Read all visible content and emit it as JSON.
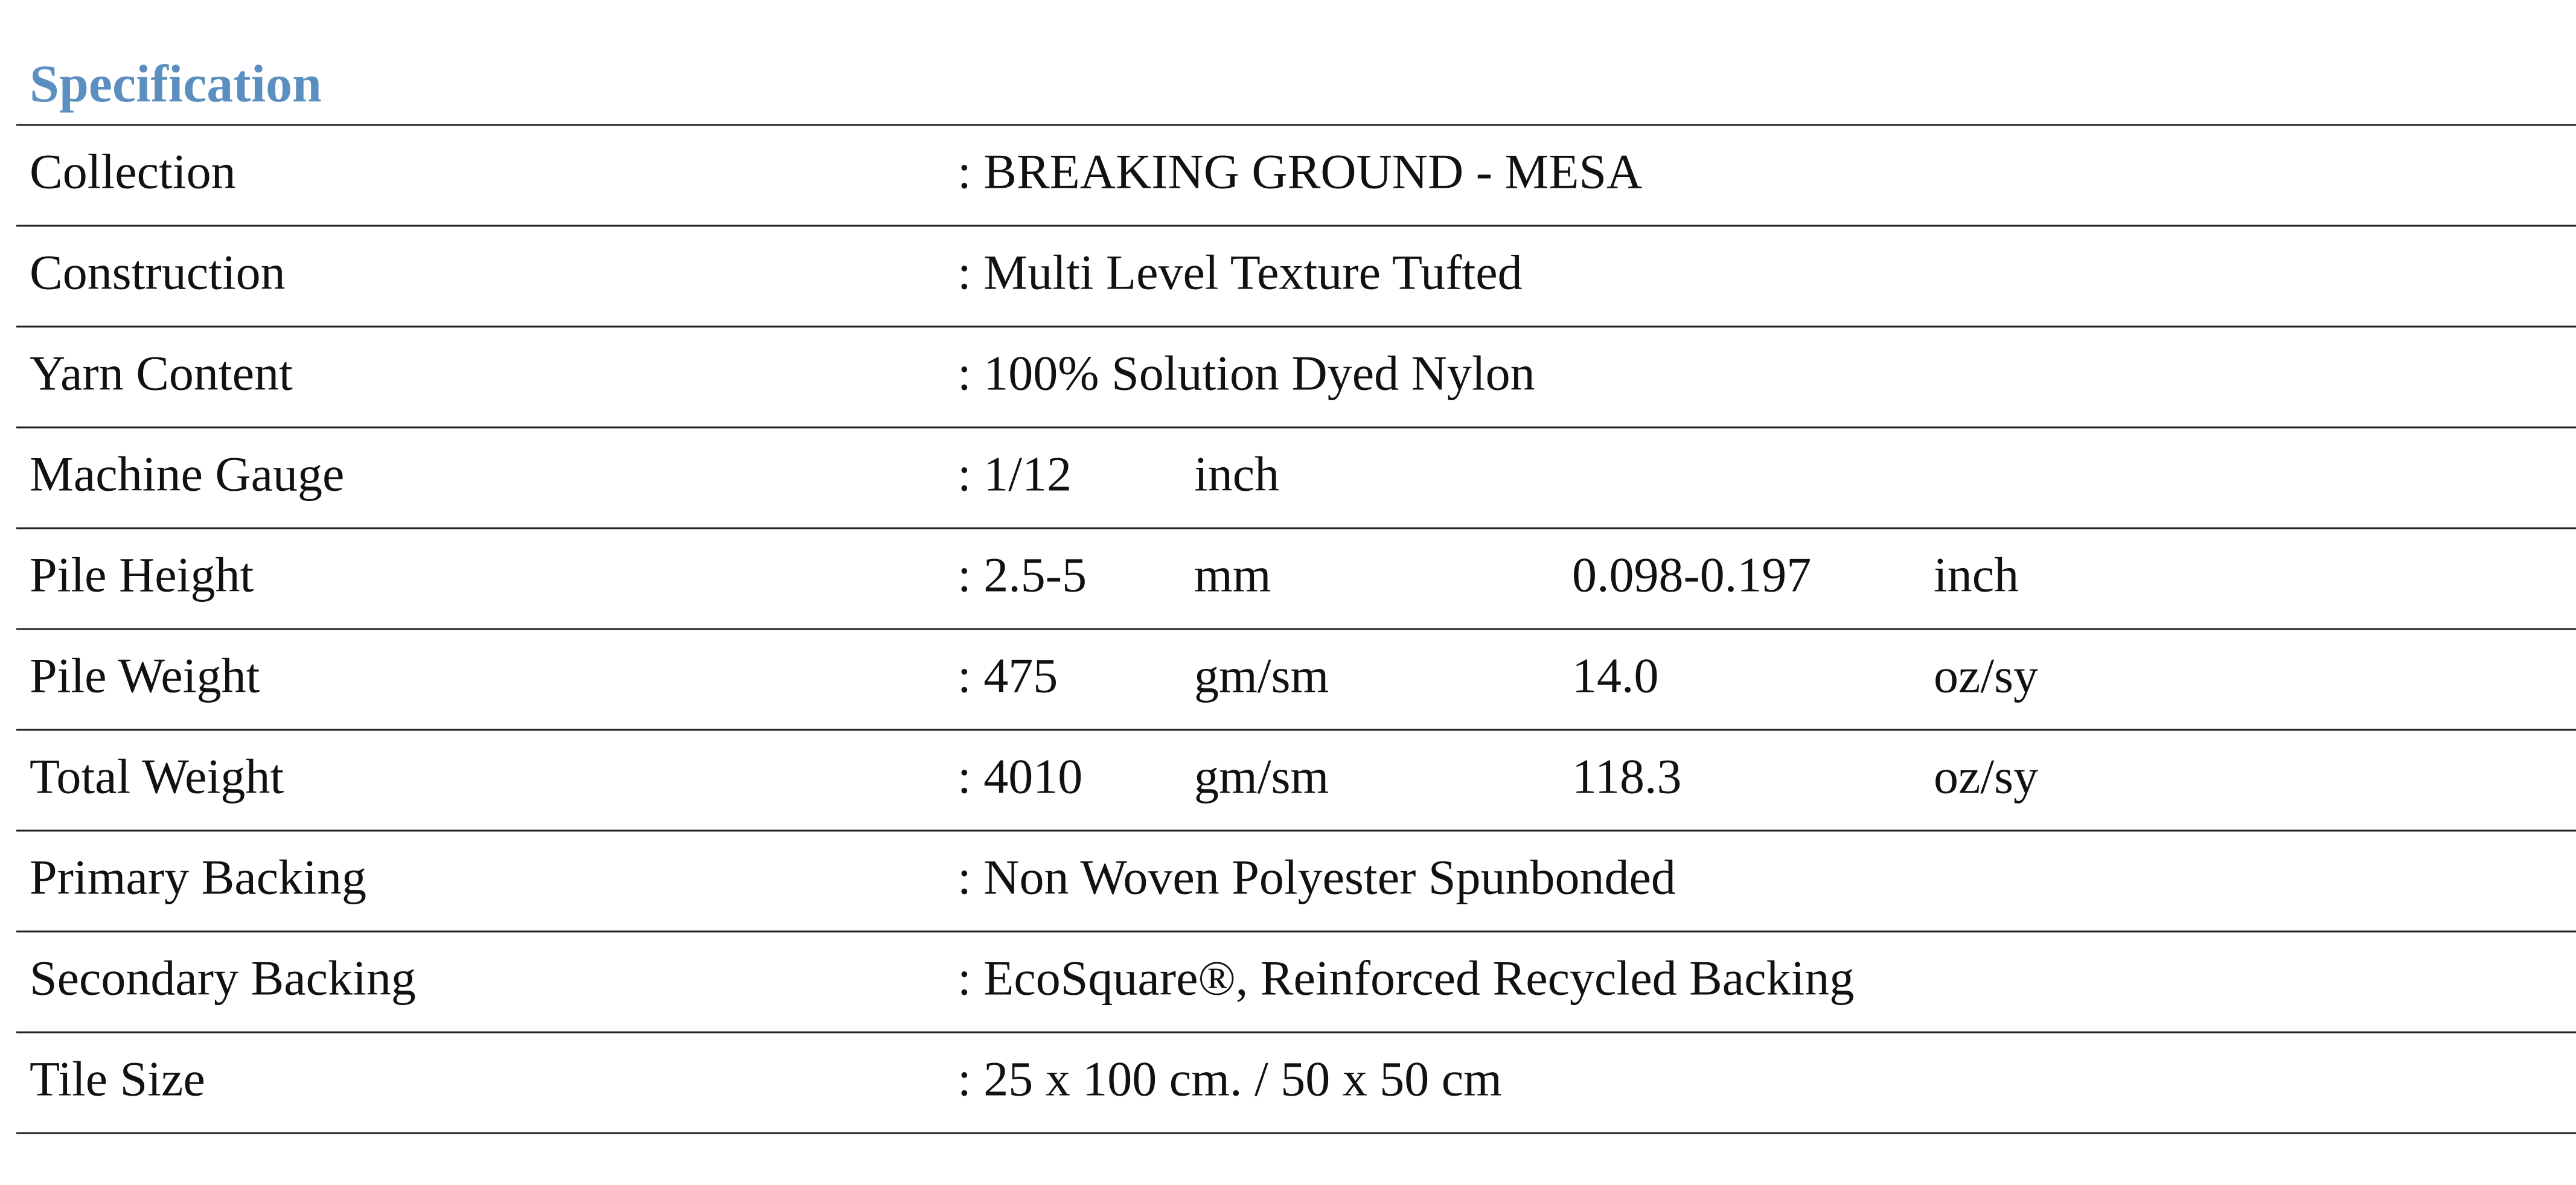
{
  "header": {
    "title": "Specification"
  },
  "table": {
    "rows": [
      {
        "label": "Collection",
        "cells": [
          ": BREAKING GROUND - MESA"
        ]
      },
      {
        "label": "Construction",
        "cells": [
          ": Multi Level Texture Tufted"
        ]
      },
      {
        "label": "Yarn Content",
        "cells": [
          ": 100% Solution Dyed Nylon"
        ]
      },
      {
        "label": "Machine Gauge",
        "cells": [
          ": 1/12",
          "inch"
        ]
      },
      {
        "label": "Pile Height",
        "cells": [
          ": 2.5-5",
          "mm",
          "0.098-0.197",
          "inch"
        ]
      },
      {
        "label": "Pile Weight",
        "cells": [
          ": 475",
          "gm/sm",
          "14.0",
          "oz/sy"
        ]
      },
      {
        "label": "Total Weight",
        "cells": [
          ": 4010",
          "gm/sm",
          "118.3",
          "oz/sy"
        ]
      },
      {
        "label": "Primary Backing",
        "cells": [
          ": Non Woven Polyester Spunbonded"
        ]
      },
      {
        "label": "Secondary Backing",
        "cells": [
          ": EcoSquare®, Reinforced Recycled Backing"
        ]
      },
      {
        "label": "Tile Size",
        "cells": [
          ": 25 x 100 cm. / 50 x 50 cm"
        ]
      }
    ]
  }
}
